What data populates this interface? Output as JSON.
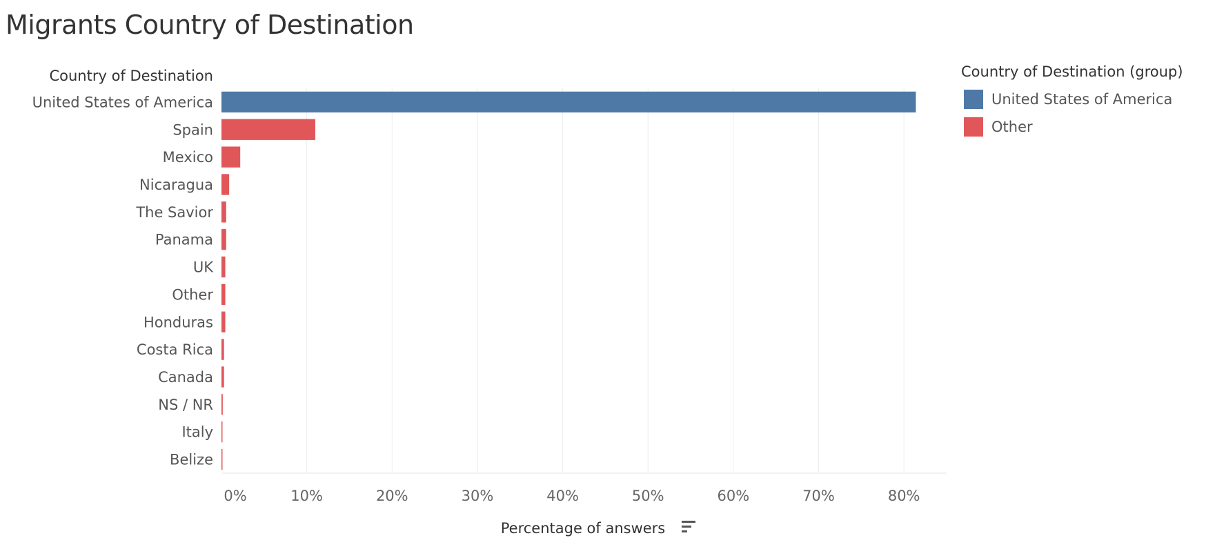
{
  "chart_data": {
    "type": "bar",
    "orientation": "horizontal",
    "title": "Migrants Country of Destination",
    "category_axis_title": "Country of Destination",
    "xlabel": "Percentage of answers",
    "categories": [
      "United States of America",
      "Spain",
      "Mexico",
      "Nicaragua",
      "The Savior",
      "Panama",
      "UK",
      "Other",
      "Honduras",
      "Costa Rica",
      "Canada",
      "NS / NR",
      "Italy",
      "Belize"
    ],
    "values": [
      81.4,
      11.0,
      2.2,
      0.9,
      0.55,
      0.55,
      0.45,
      0.45,
      0.45,
      0.3,
      0.3,
      0.15,
      0.12,
      0.12
    ],
    "groups": [
      "United States of America",
      "Other",
      "Other",
      "Other",
      "Other",
      "Other",
      "Other",
      "Other",
      "Other",
      "Other",
      "Other",
      "Other",
      "Other",
      "Other"
    ],
    "xlim": [
      0,
      85
    ],
    "xticks": [
      0,
      10,
      20,
      30,
      40,
      50,
      60,
      70,
      80
    ],
    "xtick_labels": [
      "0%",
      "10%",
      "20%",
      "30%",
      "40%",
      "50%",
      "60%",
      "70%",
      "80%"
    ],
    "grid": true,
    "legend": {
      "title": "Country of Destination (group)",
      "placement": "right",
      "entries": [
        {
          "label": "United States of America",
          "color": "#4e79a7"
        },
        {
          "label": "Other",
          "color": "#e15759"
        }
      ]
    }
  }
}
